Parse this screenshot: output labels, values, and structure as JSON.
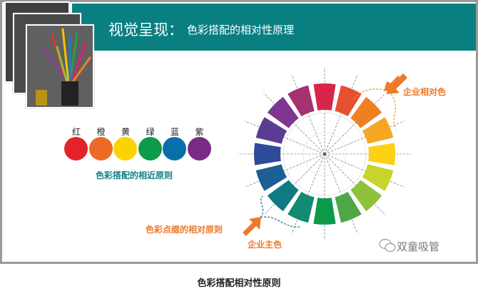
{
  "slide": {
    "title_main": "视觉呈现：",
    "title_sub": "色彩搭配的相对性原理",
    "header_color": "#0a7f82"
  },
  "hues": [
    {
      "label": "红",
      "color": "#e3232a"
    },
    {
      "label": "橙",
      "color": "#ec6a25"
    },
    {
      "label": "黄",
      "color": "#fcd200"
    },
    {
      "label": "绿",
      "color": "#0d9a4b"
    },
    {
      "label": "蓝",
      "color": "#0a6eab"
    },
    {
      "label": "紫",
      "color": "#7a2a86"
    }
  ],
  "near_principle": "色彩搭配的相近原则",
  "wheel": {
    "segments": [
      "#d8254a",
      "#e5502e",
      "#ee7f22",
      "#f5a623",
      "#fcd116",
      "#c8d42a",
      "#8fc03c",
      "#4fa847",
      "#0a9a4a",
      "#138b72",
      "#0f7a84",
      "#1b5f94",
      "#2e4a9a",
      "#5a3d92",
      "#7e3490",
      "#a7306f"
    ]
  },
  "annotations": {
    "relative_color": "企业相对色",
    "main_color": "企业主色",
    "accent_principle": "色彩点缀的相对原则",
    "accent_color": "#ec7a2c"
  },
  "watermark": "双童吸管",
  "caption": "色彩搭配相对性原则"
}
